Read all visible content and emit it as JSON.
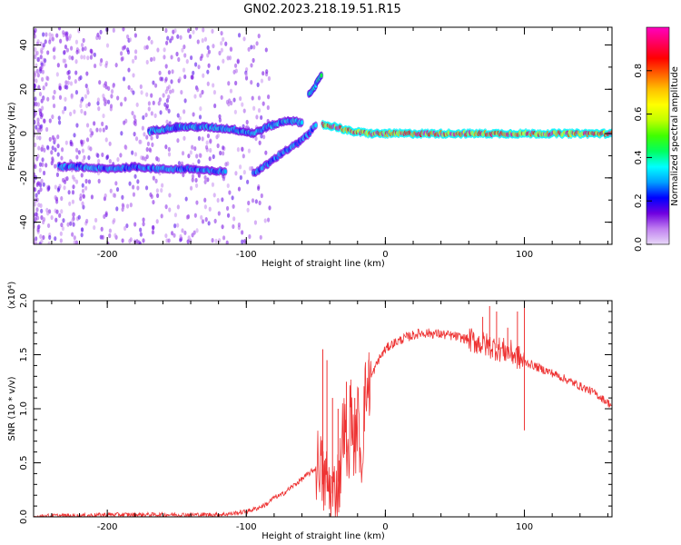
{
  "chart_data": [
    {
      "type": "heatmap",
      "title": "GN02.2023.218.19.51.R15",
      "xlabel": "Height of straight line (km)",
      "ylabel": "Frequency (Hz)",
      "xlim": [
        -253,
        163
      ],
      "ylim": [
        -50,
        48
      ],
      "xticks": [
        "-200",
        "-100",
        "0",
        "100"
      ],
      "yticks": [
        "-40",
        "-20",
        "0",
        "20",
        "40"
      ],
      "colorbar": {
        "label": "Normalized spectral amplitude",
        "range": [
          0,
          1
        ],
        "ticks": [
          "0.0",
          "0.2",
          "0.4",
          "0.6",
          "0.8"
        ],
        "colors": [
          "#e8d8f8",
          "#c080f0",
          "#7000e0",
          "#0000ff",
          "#00a0ff",
          "#00ffff",
          "#00ff60",
          "#40ff00",
          "#c0ff00",
          "#ffff00",
          "#ffc000",
          "#ff6000",
          "#ff0000",
          "#ff0060",
          "#ff00c0"
        ]
      },
      "traces": [
        {
          "points": [
            [
              -235,
              -15
            ],
            [
              -220,
              -15
            ],
            [
              -200,
              -16
            ],
            [
              -180,
              -15
            ],
            [
              -160,
              -16
            ],
            [
              -140,
              -16
            ],
            [
              -125,
              -17
            ],
            [
              -115,
              -17
            ]
          ],
          "max_amp": 0.35
        },
        {
          "points": [
            [
              -170,
              1
            ],
            [
              -150,
              3
            ],
            [
              -130,
              3
            ],
            [
              -110,
              2
            ],
            [
              -95,
              0
            ],
            [
              -85,
              3
            ],
            [
              -70,
              6
            ],
            [
              -60,
              5
            ]
          ],
          "max_amp": 0.38
        },
        {
          "points": [
            [
              -95,
              -18
            ],
            [
              -85,
              -14
            ],
            [
              -75,
              -9
            ],
            [
              -62,
              -4
            ],
            [
              -55,
              0
            ],
            [
              -50,
              4
            ]
          ],
          "max_amp": 0.35
        },
        {
          "points": [
            [
              -55,
              18
            ],
            [
              -50,
              22
            ],
            [
              -46,
              26
            ]
          ],
          "max_amp": 0.45
        },
        {
          "points": [
            [
              -45,
              4
            ],
            [
              -35,
              3
            ],
            [
              -25,
              1
            ],
            [
              -10,
              0
            ],
            [
              0,
              0
            ],
            [
              20,
              0
            ],
            [
              60,
              0
            ],
            [
              90,
              0
            ],
            [
              120,
              0
            ],
            [
              163,
              0
            ]
          ],
          "max_amp": 1.0
        }
      ]
    },
    {
      "type": "line",
      "xlabel": "Height of straight line (km)",
      "ylabel": "SNR (10 * v/v)",
      "y_multiplier": "(x10⁴)",
      "xlim": [
        -253,
        163
      ],
      "ylim": [
        0,
        2.0
      ],
      "xticks": [
        "-200",
        "-100",
        "0",
        "100"
      ],
      "yticks": [
        "0.0",
        "0.5",
        "1.0",
        "1.5",
        "2.0"
      ],
      "color": "#ee3333",
      "series": [
        {
          "x": [
            -253,
            -240,
            -220,
            -200,
            -180,
            -160,
            -140,
            -120,
            -110,
            -100,
            -92,
            -85,
            -80,
            -75,
            -70,
            -65,
            -60,
            -55,
            -50,
            -47,
            -45,
            -43,
            -40,
            -37,
            -35,
            -33,
            -30,
            -27,
            -25,
            -22,
            -20,
            -17,
            -15,
            -10,
            -5,
            0,
            5,
            10,
            15,
            20,
            25,
            30,
            40,
            50,
            60,
            65,
            70,
            75,
            80,
            85,
            90,
            95,
            98,
            100,
            103,
            110,
            120,
            130,
            140,
            150,
            163
          ],
          "y": [
            0.0,
            0.01,
            0.01,
            0.02,
            0.02,
            0.02,
            0.02,
            0.02,
            0.03,
            0.05,
            0.08,
            0.12,
            0.18,
            0.2,
            0.25,
            0.3,
            0.35,
            0.4,
            0.45,
            0.55,
            0.3,
            0.35,
            0.25,
            0.2,
            0.3,
            0.35,
            0.9,
            0.45,
            1.05,
            0.6,
            0.95,
            0.5,
            1.1,
            1.3,
            1.45,
            1.55,
            1.6,
            1.63,
            1.66,
            1.68,
            1.7,
            1.7,
            1.69,
            1.67,
            1.64,
            1.62,
            1.6,
            1.58,
            1.56,
            1.54,
            1.52,
            1.48,
            1.45,
            1.43,
            1.42,
            1.38,
            1.33,
            1.27,
            1.21,
            1.15,
            1.03
          ],
          "spikes": [
            [
              -45,
              1.55
            ],
            [
              -42,
              1.45
            ],
            [
              -38,
              1.1
            ],
            [
              -34,
              1.0
            ],
            [
              -28,
              1.25
            ],
            [
              -22,
              1.1
            ],
            [
              -12,
              1.45
            ],
            [
              70,
              1.85
            ],
            [
              75,
              1.95
            ],
            [
              80,
              1.9
            ],
            [
              88,
              1.75
            ],
            [
              95,
              1.9
            ],
            [
              100,
              2.0
            ],
            [
              100,
              0.8
            ]
          ]
        }
      ]
    }
  ]
}
